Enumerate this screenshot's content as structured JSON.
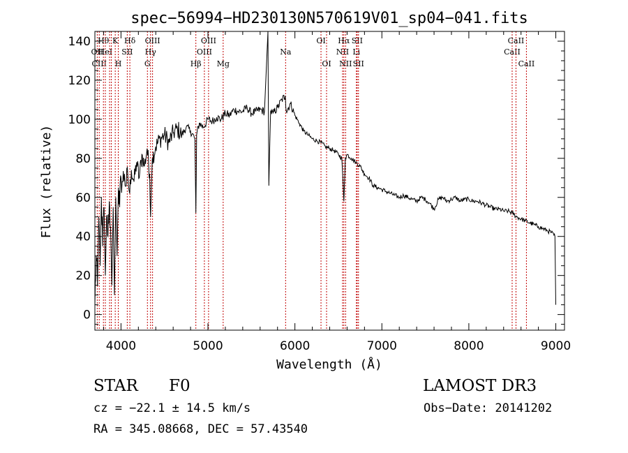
{
  "chart_data": {
    "type": "line",
    "title": "spec−56994−HD230130N570619V01_sp04−041.fits",
    "xlabel": "Wavelength (Å)",
    "ylabel": "Flux (relative)",
    "xlim": [
      3700,
      9100
    ],
    "ylim": [
      -8,
      145
    ],
    "x_ticks": [
      4000,
      5000,
      6000,
      7000,
      8000,
      9000
    ],
    "y_ticks": [
      0,
      20,
      40,
      60,
      80,
      100,
      120,
      140
    ],
    "grid": false,
    "series": [
      {
        "name": "spectrum",
        "x": [
          3700,
          3715,
          3730,
          3745,
          3760,
          3775,
          3790,
          3805,
          3820,
          3835,
          3850,
          3865,
          3880,
          3895,
          3910,
          3925,
          3940,
          3955,
          3970,
          3985,
          4000,
          4020,
          4040,
          4060,
          4080,
          4100,
          4120,
          4150,
          4180,
          4210,
          4240,
          4270,
          4300,
          4330,
          4340,
          4360,
          4400,
          4450,
          4500,
          4550,
          4600,
          4650,
          4700,
          4750,
          4800,
          4850,
          4861,
          4870,
          4900,
          4950,
          5000,
          5050,
          5100,
          5150,
          5200,
          5250,
          5300,
          5350,
          5400,
          5450,
          5500,
          5550,
          5600,
          5650,
          5690,
          5700,
          5720,
          5750,
          5800,
          5850,
          5890,
          5900,
          5950,
          6000,
          6050,
          6100,
          6150,
          6200,
          6250,
          6300,
          6350,
          6400,
          6450,
          6500,
          6540,
          6563,
          6580,
          6600,
          6650,
          6700,
          6750,
          6800,
          6850,
          6900,
          6950,
          7000,
          7050,
          7100,
          7150,
          7200,
          7250,
          7300,
          7350,
          7400,
          7450,
          7500,
          7550,
          7600,
          7650,
          7700,
          7750,
          7800,
          7850,
          7900,
          7950,
          8000,
          8050,
          8100,
          8150,
          8200,
          8250,
          8300,
          8350,
          8400,
          8450,
          8500,
          8550,
          8600,
          8650,
          8700,
          8750,
          8800,
          8850,
          8900,
          8950,
          8990,
          9000
        ],
        "y": [
          5,
          30,
          15,
          50,
          25,
          60,
          35,
          55,
          20,
          50,
          40,
          58,
          45,
          15,
          55,
          10,
          60,
          30,
          65,
          55,
          70,
          68,
          72,
          66,
          70,
          62,
          74,
          68,
          78,
          70,
          82,
          76,
          85,
          72,
          50,
          80,
          86,
          90,
          92,
          88,
          93,
          95,
          92,
          96,
          94,
          90,
          52,
          92,
          98,
          96,
          100,
          99,
          101,
          100,
          103,
          102,
          105,
          104,
          104,
          106,
          103,
          104,
          105,
          104,
          145,
          66,
          104,
          103,
          106,
          110,
          112,
          104,
          108,
          102,
          98,
          94,
          92,
          90,
          89,
          88,
          86,
          85,
          84,
          82,
          80,
          58,
          80,
          82,
          80,
          78,
          76,
          72,
          70,
          66,
          65,
          64,
          63,
          62,
          61,
          60,
          61,
          60,
          59,
          58,
          60,
          59,
          57,
          54,
          59,
          60,
          58,
          59,
          60,
          58,
          59,
          59,
          58,
          58,
          57,
          56,
          55,
          54,
          54,
          53,
          53,
          52,
          50,
          49,
          48,
          47,
          46,
          45,
          44,
          43,
          42,
          40,
          5
        ]
      }
    ],
    "line_markers": [
      {
        "wl": 3727,
        "label": "OII",
        "row": 2
      },
      {
        "wl": 3750,
        "label": "CIII",
        "row": 3
      },
      {
        "wl": 3798,
        "label": "Hθ",
        "row": 1
      },
      {
        "wl": 3820,
        "label": "HeI",
        "row": 2
      },
      {
        "wl": 3869,
        "label": "",
        "row": 0
      },
      {
        "wl": 3889,
        "label": "",
        "row": 0
      },
      {
        "wl": 3934,
        "label": "K",
        "row": 1
      },
      {
        "wl": 3969,
        "label": "H",
        "row": 3
      },
      {
        "wl": 4072,
        "label": "SII",
        "row": 2
      },
      {
        "wl": 4102,
        "label": "Hδ",
        "row": 1
      },
      {
        "wl": 4340,
        "label": "Hγ",
        "row": 2
      },
      {
        "wl": 4304,
        "label": "G",
        "row": 3
      },
      {
        "wl": 4363,
        "label": "OIII",
        "row": 1
      },
      {
        "wl": 4861,
        "label": "Hβ",
        "row": 3
      },
      {
        "wl": 4959,
        "label": "OIII",
        "row": 2
      },
      {
        "wl": 5007,
        "label": "OIII",
        "row": 1
      },
      {
        "wl": 5175,
        "label": "Mg",
        "row": 3
      },
      {
        "wl": 5893,
        "label": "Na",
        "row": 2
      },
      {
        "wl": 6300,
        "label": "OI",
        "row": 1
      },
      {
        "wl": 6364,
        "label": "OI",
        "row": 3
      },
      {
        "wl": 6548,
        "label": "NII",
        "row": 2
      },
      {
        "wl": 6563,
        "label": "Hα",
        "row": 1
      },
      {
        "wl": 6583,
        "label": "NII",
        "row": 3
      },
      {
        "wl": 6716,
        "label": "SII",
        "row": 1
      },
      {
        "wl": 6707,
        "label": "Li",
        "row": 2
      },
      {
        "wl": 6731,
        "label": "SII",
        "row": 3
      },
      {
        "wl": 8498,
        "label": "CaII",
        "row": 2
      },
      {
        "wl": 8542,
        "label": "CaII",
        "row": 1
      },
      {
        "wl": 8662,
        "label": "CaII",
        "row": 3
      }
    ]
  },
  "info": {
    "object_class": "STAR",
    "subclass": "F0",
    "survey": "LAMOST DR3",
    "cz": "cz = −22.1 ± 14.5 km/s",
    "obs_date": "Obs−Date: 20141202",
    "coords": "RA = 345.08668, DEC =  57.43540"
  }
}
